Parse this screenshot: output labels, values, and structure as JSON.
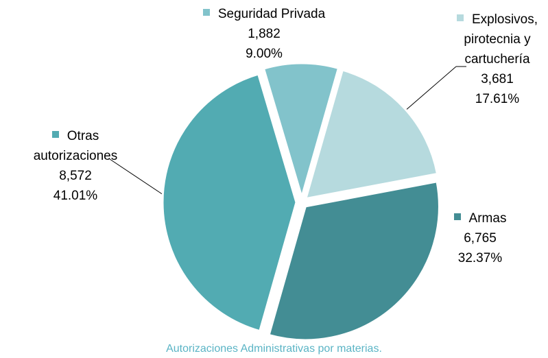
{
  "chart_data": {
    "type": "pie",
    "title": "Autorizaciones Administrativas por materias.",
    "categories": [
      "Seguridad Privada",
      "Explosivos, pirotecnia y cartuchería",
      "Armas",
      "Otras autorizaciones"
    ],
    "values": [
      1882,
      3681,
      6765,
      8572
    ],
    "value_labels": [
      "1,882",
      "3,681",
      "6,765",
      "8,572"
    ],
    "percents": [
      9.0,
      17.61,
      32.37,
      41.01
    ],
    "percent_labels": [
      "9.00%",
      "17.61%",
      "32.37%",
      "41.01%"
    ],
    "colors": [
      "#82c3cb",
      "#b6dade",
      "#438d94",
      "#52abb2"
    ]
  }
}
